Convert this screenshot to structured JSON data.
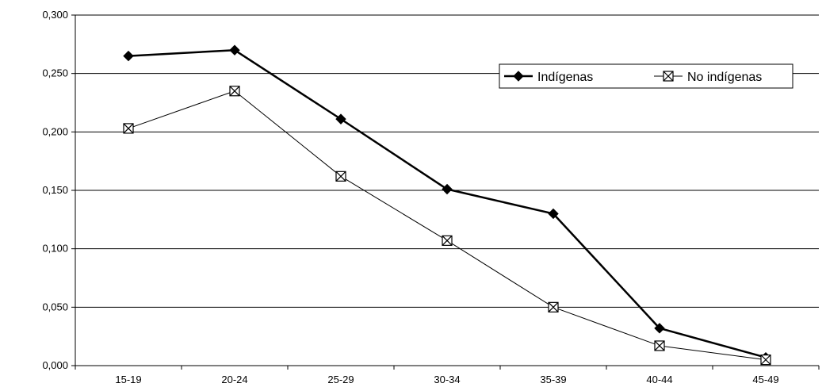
{
  "chart_data": {
    "type": "line",
    "title": "",
    "xlabel": "",
    "ylabel": "",
    "categories": [
      "15-19",
      "20-24",
      "25-29",
      "30-34",
      "35-39",
      "40-44",
      "45-49"
    ],
    "y_ticks": [
      "0,000",
      "0,050",
      "0,100",
      "0,150",
      "0,200",
      "0,250",
      "0,300"
    ],
    "ylim": [
      0,
      0.3
    ],
    "grid": "horizontal",
    "legend_position": "top-right",
    "series": [
      {
        "name": "Indígenas",
        "marker": "diamond",
        "color": "#000000",
        "values": [
          0.265,
          0.27,
          0.211,
          0.151,
          0.13,
          0.032,
          0.007
        ]
      },
      {
        "name": "No indígenas",
        "marker": "square-x",
        "color": "#000000",
        "values": [
          0.203,
          0.235,
          0.162,
          0.107,
          0.05,
          0.017,
          0.005
        ]
      }
    ]
  }
}
